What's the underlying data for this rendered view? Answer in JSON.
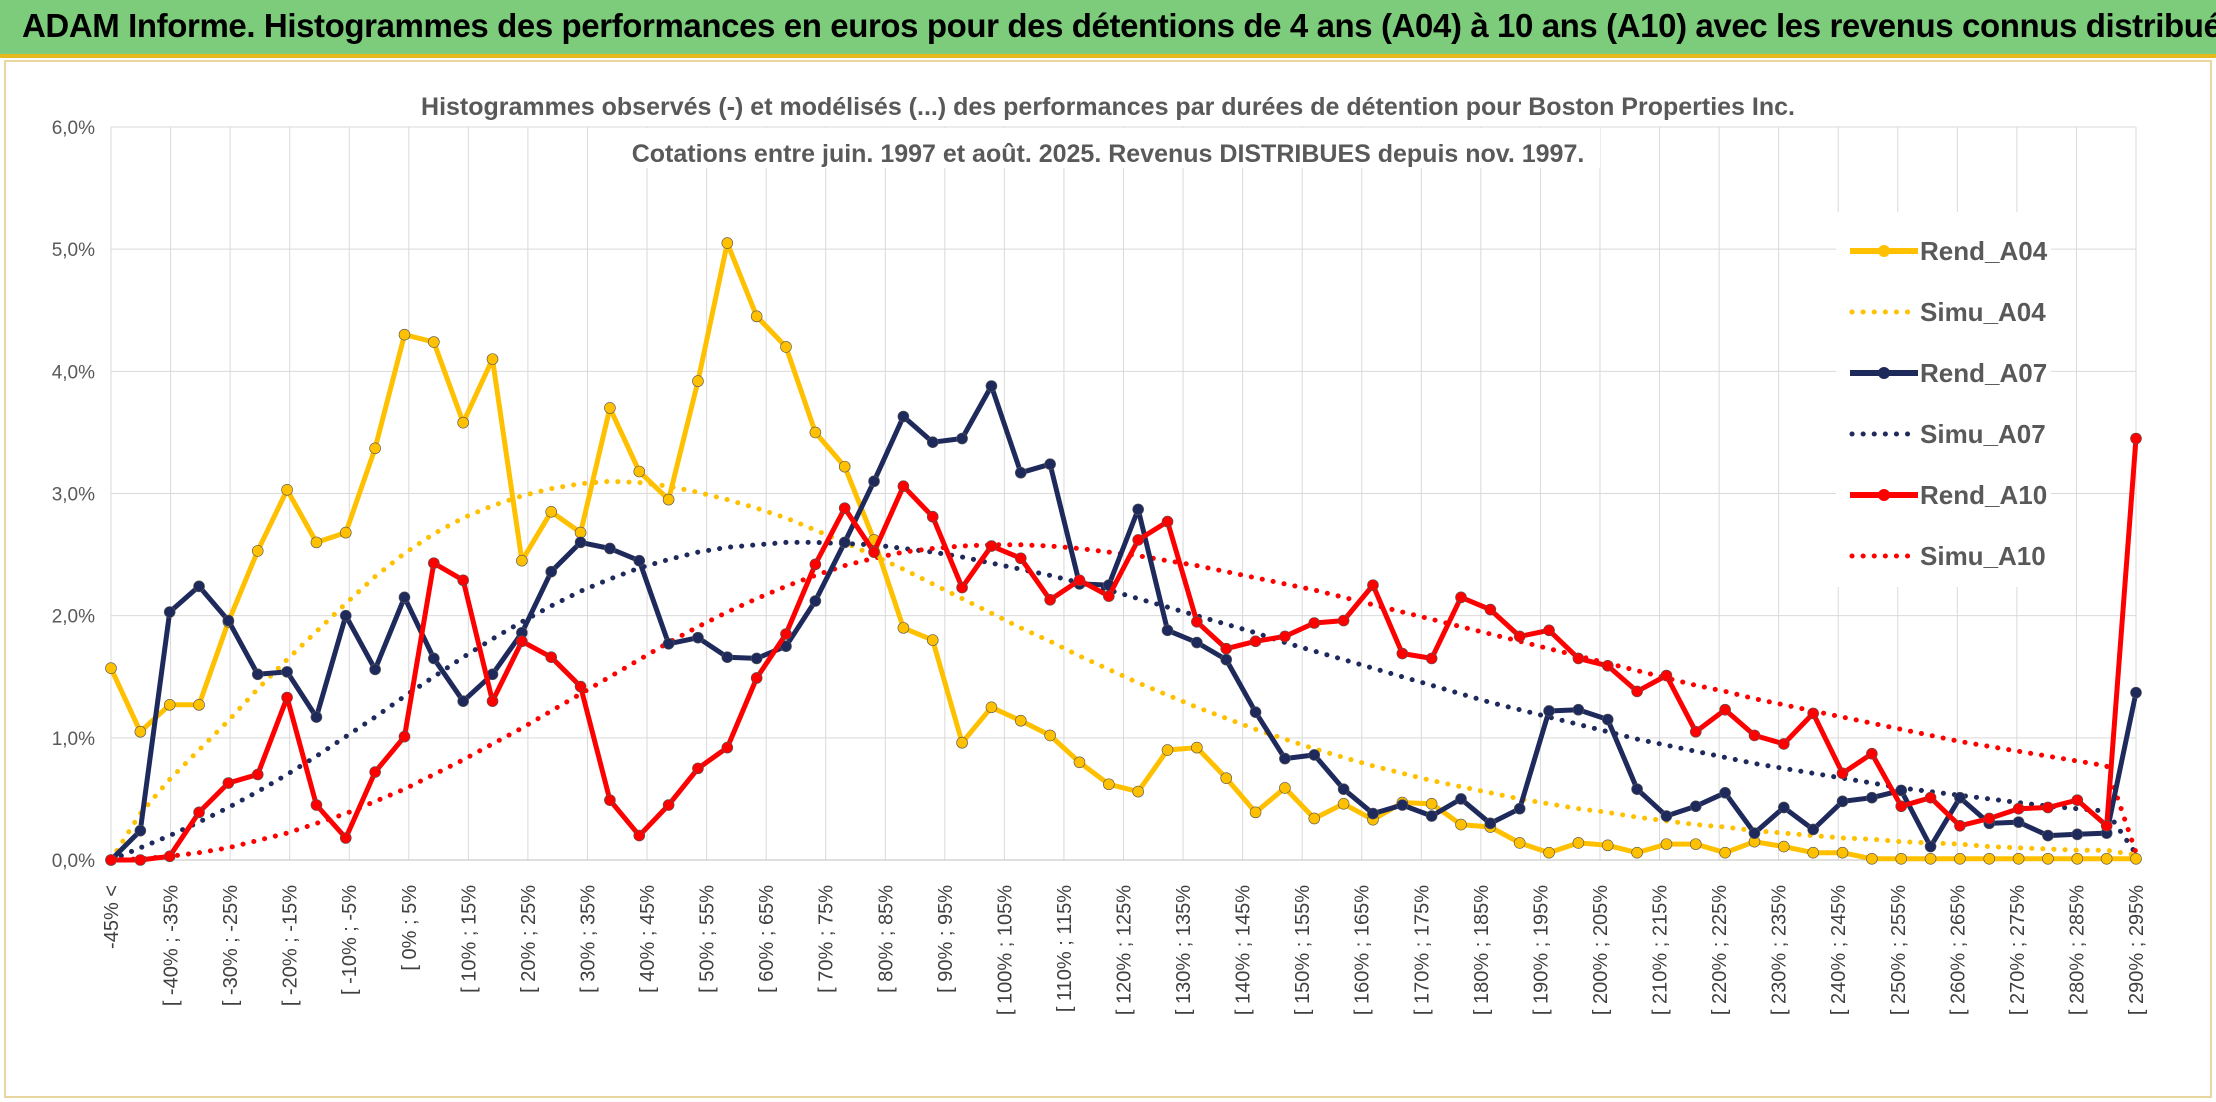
{
  "banner": {
    "title": "ADAM Informe. Histogrammes des performances en euros pour des détentions de 4 ans (A04) à 10 ans (A10) avec les revenus connus distribués"
  },
  "colors": {
    "banner_bg": "#7ccc7b",
    "banner_border": "#e5b81d",
    "A04": "#ffc000",
    "A07": "#1f2a5c",
    "A10": "#ff0000"
  },
  "chart_data": {
    "type": "line",
    "title_lines": [
      "Histogrammes observés (-) et modélisés (...) des performances par durées de détention pour Boston Properties Inc.",
      "Cotations entre juin. 1997 et août. 2025. Revenus DISTRIBUES depuis nov. 1997."
    ],
    "y_ticks": [
      "0,0%",
      "1,0%",
      "2,0%",
      "3,0%",
      "4,0%",
      "5,0%",
      "6,0%"
    ],
    "ylim": [
      0,
      6
    ],
    "grid": "vertical and horizontal",
    "legend_position": "right",
    "x_labels": [
      "-45% <",
      "[ -40% ; -35%",
      "[ -30% ; -25%",
      "[ -20% ; -15%",
      "[ -10% ; -5%",
      "[ 0% ; 5%",
      "[ 10% ; 15%",
      "[ 20% ; 25%",
      "[ 30% ; 35%",
      "[ 40% ; 45%",
      "[ 50% ; 55%",
      "[ 60% ; 65%",
      "[ 70% ; 75%",
      "[ 80% ; 85%",
      "[ 90% ; 95%",
      "[ 100% ; 105%",
      "[ 110% ; 115%",
      "[ 120% ; 125%",
      "[ 130% ; 135%",
      "[ 140% ; 145%",
      "[ 150% ; 155%",
      "[ 160% ; 165%",
      "[ 170% ; 175%",
      "[ 180% ; 185%",
      "[ 190% ; 195%",
      "[ 200% ; 205%",
      "[ 210% ; 215%",
      "[ 220% ; 225%",
      "[ 230% ; 235%",
      "[ 240% ; 245%",
      "[ 250% ; 255%",
      "[ 260% ; 265%",
      "[ 270% ; 275%",
      "[ 280% ; 285%",
      "[ 290% ; 295%"
    ],
    "series": [
      {
        "name": "Rend_A04",
        "style": "solid",
        "marker": true,
        "color": "#ffc000",
        "values": [
          1.57,
          1.05,
          1.27,
          1.27,
          1.95,
          2.53,
          3.03,
          2.6,
          2.68,
          3.37,
          4.3,
          4.24,
          3.58,
          4.1,
          2.45,
          2.85,
          2.68,
          3.7,
          3.18,
          2.95,
          3.92,
          5.05,
          4.45,
          4.2,
          3.5,
          3.22,
          2.62,
          1.9,
          1.8,
          0.96,
          1.25,
          1.14,
          1.02,
          0.8,
          0.62,
          0.56,
          0.9,
          0.92,
          0.67,
          0.39,
          0.59,
          0.34,
          0.46,
          0.33,
          0.47,
          0.46,
          0.29,
          0.27,
          0.14,
          0.06,
          0.14,
          0.12,
          0.06,
          0.13,
          0.13,
          0.06,
          0.15,
          0.11,
          0.06,
          0.06,
          0.01,
          0.01,
          0.01,
          0.01,
          0.01,
          0.01,
          0.01,
          0.01,
          0.01,
          0.01
        ]
      },
      {
        "name": "Simu_A04",
        "style": "dotted",
        "marker": false,
        "color": "#ffc000",
        "values": [
          0.0,
          0.38,
          0.66,
          0.9,
          1.14,
          1.4,
          1.64,
          1.87,
          2.1,
          2.32,
          2.51,
          2.67,
          2.8,
          2.9,
          2.98,
          3.04,
          3.08,
          3.1,
          3.09,
          3.06,
          3.01,
          2.95,
          2.88,
          2.8,
          2.7,
          2.6,
          2.49,
          2.38,
          2.26,
          2.14,
          2.02,
          1.9,
          1.79,
          1.67,
          1.56,
          1.45,
          1.35,
          1.25,
          1.16,
          1.07,
          0.99,
          0.91,
          0.84,
          0.77,
          0.71,
          0.65,
          0.6,
          0.55,
          0.5,
          0.46,
          0.42,
          0.39,
          0.35,
          0.32,
          0.29,
          0.27,
          0.24,
          0.22,
          0.2,
          0.18,
          0.17,
          0.15,
          0.14,
          0.13,
          0.11,
          0.1,
          0.09,
          0.08,
          0.08,
          0.04
        ]
      },
      {
        "name": "Rend_A07",
        "style": "solid",
        "marker": true,
        "color": "#1f2a5c",
        "values": [
          0.0,
          0.24,
          2.03,
          2.24,
          1.96,
          1.52,
          1.54,
          1.17,
          2.0,
          1.56,
          2.15,
          1.65,
          1.3,
          1.52,
          1.86,
          2.36,
          2.6,
          2.55,
          2.45,
          1.77,
          1.82,
          1.66,
          1.65,
          1.75,
          2.12,
          2.6,
          3.1,
          3.63,
          3.42,
          3.45,
          3.88,
          3.17,
          3.24,
          2.26,
          2.25,
          2.87,
          1.88,
          1.78,
          1.64,
          1.21,
          0.83,
          0.86,
          0.58,
          0.38,
          0.45,
          0.36,
          0.5,
          0.3,
          0.42,
          1.22,
          1.23,
          1.15,
          0.58,
          0.36,
          0.44,
          0.55,
          0.22,
          0.43,
          0.25,
          0.48,
          0.51,
          0.57,
          0.11,
          0.51,
          0.3,
          0.31,
          0.2,
          0.21,
          0.22,
          1.37
        ]
      },
      {
        "name": "Simu_A07",
        "style": "dotted",
        "marker": false,
        "color": "#1f2a5c",
        "values": [
          0.0,
          0.1,
          0.2,
          0.31,
          0.43,
          0.56,
          0.7,
          0.85,
          1.01,
          1.17,
          1.34,
          1.5,
          1.66,
          1.81,
          1.95,
          2.08,
          2.2,
          2.3,
          2.39,
          2.46,
          2.52,
          2.56,
          2.58,
          2.6,
          2.6,
          2.59,
          2.58,
          2.55,
          2.52,
          2.48,
          2.43,
          2.38,
          2.33,
          2.27,
          2.21,
          2.14,
          2.07,
          2.0,
          1.93,
          1.86,
          1.78,
          1.71,
          1.64,
          1.57,
          1.5,
          1.43,
          1.36,
          1.29,
          1.23,
          1.17,
          1.11,
          1.05,
          0.99,
          0.94,
          0.89,
          0.84,
          0.79,
          0.75,
          0.71,
          0.67,
          0.63,
          0.59,
          0.56,
          0.53,
          0.5,
          0.47,
          0.44,
          0.42,
          0.4,
          0.05
        ]
      },
      {
        "name": "Rend_A10",
        "style": "solid",
        "marker": true,
        "color": "#ff0000",
        "values": [
          0.0,
          0.0,
          0.03,
          0.39,
          0.63,
          0.7,
          1.33,
          0.45,
          0.18,
          0.72,
          1.01,
          2.43,
          2.29,
          1.3,
          1.79,
          1.66,
          1.42,
          0.49,
          0.2,
          0.45,
          0.75,
          0.92,
          1.49,
          1.85,
          2.42,
          2.88,
          2.52,
          3.06,
          2.81,
          2.23,
          2.57,
          2.47,
          2.13,
          2.29,
          2.16,
          2.62,
          2.77,
          1.95,
          1.73,
          1.79,
          1.83,
          1.94,
          1.96,
          2.25,
          1.69,
          1.65,
          2.15,
          2.05,
          1.83,
          1.88,
          1.65,
          1.59,
          1.38,
          1.51,
          1.05,
          1.23,
          1.02,
          0.95,
          1.2,
          0.71,
          0.87,
          0.44,
          0.51,
          0.28,
          0.34,
          0.42,
          0.43,
          0.49,
          0.28,
          3.45
        ]
      },
      {
        "name": "Simu_A10",
        "style": "dotted",
        "marker": false,
        "color": "#ff0000",
        "values": [
          0.0,
          0.01,
          0.03,
          0.06,
          0.1,
          0.16,
          0.22,
          0.3,
          0.38,
          0.48,
          0.58,
          0.7,
          0.82,
          0.95,
          1.08,
          1.22,
          1.36,
          1.5,
          1.64,
          1.78,
          1.91,
          2.03,
          2.14,
          2.24,
          2.33,
          2.41,
          2.47,
          2.52,
          2.55,
          2.57,
          2.58,
          2.58,
          2.57,
          2.55,
          2.52,
          2.49,
          2.45,
          2.41,
          2.36,
          2.31,
          2.26,
          2.21,
          2.15,
          2.09,
          2.03,
          1.97,
          1.91,
          1.85,
          1.79,
          1.73,
          1.67,
          1.61,
          1.55,
          1.49,
          1.43,
          1.38,
          1.32,
          1.27,
          1.22,
          1.17,
          1.12,
          1.07,
          1.02,
          0.97,
          0.93,
          0.89,
          0.85,
          0.81,
          0.77,
          0.06
        ]
      }
    ]
  }
}
